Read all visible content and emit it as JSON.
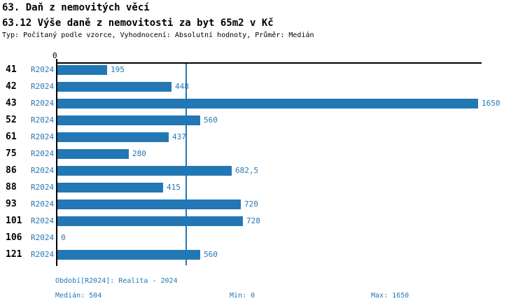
{
  "header": {
    "title1": "63. Daň z nemovitých věcí",
    "title2": "63.12 Výše daně z nemovitosti za byt 65m2 v Kč",
    "subtitle": "Typ: Počítaný podle vzorce, Vyhodnocení: Absolutní hodnoty, Průměr: Medián"
  },
  "chart_data": {
    "type": "bar",
    "orientation": "horizontal",
    "title": "63.12 Výše daně z nemovitosti za byt 65m2 v Kč",
    "categories": [
      "41",
      "42",
      "43",
      "52",
      "61",
      "75",
      "86",
      "88",
      "93",
      "101",
      "106",
      "121"
    ],
    "series": [
      {
        "name": "R2024",
        "values": [
          195,
          448,
          1650,
          560,
          437,
          280,
          682.5,
          415,
          720,
          728,
          0,
          560
        ],
        "value_labels": [
          "195",
          "448",
          "1650",
          "560",
          "437",
          "280",
          "682,5",
          "415",
          "720",
          "728",
          "0",
          "560"
        ]
      }
    ],
    "xlim": [
      0,
      1650
    ],
    "axis_origin_label": "0",
    "median_reference_line": 504,
    "grid": false,
    "legend_position": "none",
    "bar_color": "#2377b4",
    "accent_text_color": "#2377b4",
    "axis_color": "#000000"
  },
  "footer": {
    "period": "Období[R2024]: Realita - 2024",
    "median": "Medián: 504",
    "min": "Min: 0",
    "max": "Max: 1650"
  }
}
